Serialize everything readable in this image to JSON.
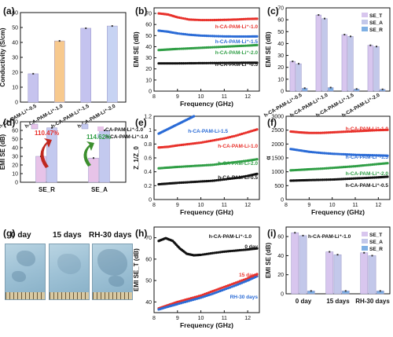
{
  "chart_data": [
    {
      "panel": "(a)",
      "type": "bar",
      "ylabel": "Conductivity (S/cm)",
      "ylim": [
        0,
        60
      ],
      "yticks": [
        0,
        10,
        20,
        30,
        40,
        50,
        60
      ],
      "categories": [
        "h-CA-PAM-Li⁺-0.5",
        "h-CA-PAM-Li⁺-1.0",
        "h-CA-PAM-Li⁺-1.5",
        "h-CA-PAM-Li⁺-2.0"
      ],
      "values": [
        19,
        41,
        49.5,
        51
      ],
      "colors": [
        "#c6c3ee",
        "#f7c98e",
        "#c4c3ef",
        "#c7d3f3"
      ]
    },
    {
      "panel": "(b)",
      "type": "line",
      "xlabel": "Frequency (GHz)",
      "ylabel": "EMI SE (dB)",
      "xlim": [
        8.2,
        12.4
      ],
      "xticks": [
        8,
        9,
        10,
        11,
        12
      ],
      "ylim": [
        0,
        75
      ],
      "yticks": [
        0,
        10,
        20,
        30,
        40,
        50,
        60,
        70
      ],
      "series": [
        {
          "name": "h-CA-PAM-Li⁺-1.0",
          "color": "#e8302a",
          "x": [
            8.2,
            8.6,
            9.0,
            9.5,
            10.0,
            10.5,
            11.0,
            11.5,
            12.0,
            12.4
          ],
          "y": [
            70,
            69,
            66.5,
            64.5,
            64,
            64,
            64.2,
            64.5,
            65,
            65.2
          ]
        },
        {
          "name": "h-CA-PAM-Li⁺-1.5",
          "color": "#2a6bd6",
          "x": [
            8.2,
            8.6,
            9.0,
            9.5,
            10.0,
            10.5,
            11.0,
            11.5,
            12.0,
            12.4
          ],
          "y": [
            54.5,
            53.5,
            52,
            50.8,
            50,
            49.6,
            49.3,
            49.2,
            49.2,
            49.3
          ]
        },
        {
          "name": "h-CA-PAM-Li⁺-2.0",
          "color": "#2f9e45",
          "x": [
            8.2,
            8.6,
            9.0,
            9.5,
            10.0,
            10.5,
            11.0,
            11.5,
            12.0,
            12.4
          ],
          "y": [
            37,
            37.5,
            38,
            38.5,
            39,
            39.5,
            40,
            40.5,
            41,
            41.5
          ]
        },
        {
          "name": "h-CA-PAM-Li⁺-0.5",
          "color": "#111111",
          "x": [
            8.2,
            8.6,
            9.0,
            9.5,
            10.0,
            10.5,
            11.0,
            11.5,
            12.0,
            12.4
          ],
          "y": [
            25,
            25,
            25,
            25.1,
            25.2,
            25.3,
            25.4,
            25.5,
            25.6,
            25.6
          ]
        }
      ]
    },
    {
      "panel": "(c)",
      "type": "bar",
      "ylabel": "EMI SE (dB)",
      "ylim": [
        0,
        70
      ],
      "yticks": [
        0,
        10,
        20,
        30,
        40,
        50,
        60,
        70
      ],
      "categories": [
        "h-CA-PAM-Li⁺-0.5",
        "h-CA-PAM-Li⁺-1.0",
        "h-CA-PAM-Li⁺-1.5",
        "h-CA-PAM-Li⁺-2.0"
      ],
      "legend": [
        "SE_T",
        "SE_A",
        "SE_R"
      ],
      "series": [
        {
          "name": "SE_T",
          "color": "#d8c6ee",
          "values": [
            25,
            64,
            47.5,
            38.5
          ]
        },
        {
          "name": "SE_A",
          "color": "#c3c8ea",
          "values": [
            23,
            61,
            46,
            37.5
          ]
        },
        {
          "name": "SE_R",
          "color": "#7fb0e4",
          "values": [
            2.5,
            3,
            1.8,
            1.5
          ]
        }
      ]
    },
    {
      "panel": "(d)",
      "type": "bar",
      "ylabel": "EMI SE (dB)",
      "ylim": [
        0,
        70
      ],
      "yticks": [
        0,
        10,
        20,
        30,
        40,
        50,
        60,
        70
      ],
      "categories": [
        "SE_R",
        "SE_A"
      ],
      "legend": [
        "CA-PAM-Li⁺-1.0",
        "h-CA-PAM-Li⁺-1.0"
      ],
      "series": [
        {
          "name": "CA-PAM-Li⁺-1.0",
          "color": "#e7c3e8",
          "values": [
            30,
            28
          ]
        },
        {
          "name": "h-CA-PAM-Li⁺-1.0",
          "color": "#c3c9ef",
          "values": [
            63,
            60
          ]
        }
      ],
      "annotations": [
        "110.47%",
        "114.62%"
      ]
    },
    {
      "panel": "(e)",
      "type": "line",
      "xlabel": "Frequency (GHz)",
      "ylabel": "Z_1/Z_0",
      "xlim": [
        8.2,
        12.4
      ],
      "xticks": [
        8,
        9,
        10,
        11,
        12
      ],
      "ylim": [
        0,
        1.2
      ],
      "yticks": [
        0.0,
        0.2,
        0.4,
        0.6,
        0.8,
        1.0,
        1.2
      ],
      "series": [
        {
          "name": "h-CA-PAM-Li-1.5",
          "color": "#2a6bd6",
          "x": [
            8.2,
            8.5,
            8.8,
            9.1,
            9.4,
            9.7
          ],
          "y": [
            0.95,
            1.0,
            1.05,
            1.1,
            1.15,
            1.2
          ]
        },
        {
          "name": "h-CA-PAM-Li-1.0",
          "color": "#e8302a",
          "x": [
            8.2,
            8.6,
            9.0,
            9.5,
            10.0,
            10.5,
            11.0,
            11.5,
            12.0,
            12.4
          ],
          "y": [
            0.75,
            0.76,
            0.78,
            0.8,
            0.82,
            0.85,
            0.88,
            0.92,
            0.97,
            1.01
          ]
        },
        {
          "name": "h-CA-PAM-Li-2.0",
          "color": "#2f9e45",
          "x": [
            8.2,
            8.6,
            9.0,
            9.5,
            10.0,
            10.5,
            11.0,
            11.5,
            12.0,
            12.4
          ],
          "y": [
            0.45,
            0.46,
            0.47,
            0.48,
            0.49,
            0.5,
            0.52,
            0.54,
            0.56,
            0.58
          ]
        },
        {
          "name": "h-CA-PAM-Li-0.5",
          "color": "#111111",
          "x": [
            8.2,
            8.6,
            9.0,
            9.5,
            10.0,
            10.5,
            11.0,
            11.5,
            12.0,
            12.4
          ],
          "y": [
            0.22,
            0.23,
            0.24,
            0.25,
            0.26,
            0.27,
            0.29,
            0.31,
            0.34,
            0.37
          ]
        }
      ]
    },
    {
      "panel": "(f)",
      "type": "line",
      "xlabel": "Frequency (GHz)",
      "ylabel": "α",
      "xlim": [
        8.2,
        12.4
      ],
      "xticks": [
        8,
        9,
        10,
        11,
        12
      ],
      "ylim": [
        0,
        3000
      ],
      "yticks": [
        0,
        500,
        1000,
        1500,
        2000,
        2500,
        3000
      ],
      "series": [
        {
          "name": "h-CA-PAM-Li⁺-1.0",
          "color": "#e8302a",
          "x": [
            8.2,
            8.6,
            9.0,
            9.5,
            10.0,
            10.5,
            11.0,
            11.5,
            12.0,
            12.4
          ],
          "y": [
            2450,
            2420,
            2400,
            2400,
            2420,
            2440,
            2460,
            2480,
            2500,
            2510
          ]
        },
        {
          "name": "h-CA-PAM-Li⁺-1.5",
          "color": "#2a6bd6",
          "x": [
            8.2,
            8.6,
            9.0,
            9.5,
            10.0,
            10.5,
            11.0,
            11.5,
            12.0,
            12.4
          ],
          "y": [
            1820,
            1770,
            1720,
            1680,
            1650,
            1630,
            1610,
            1600,
            1590,
            1580
          ]
        },
        {
          "name": "h-CA-PAM-Li⁺-2.0",
          "color": "#2f9e45",
          "x": [
            8.2,
            8.6,
            9.0,
            9.5,
            10.0,
            10.5,
            11.0,
            11.5,
            12.0,
            12.4
          ],
          "y": [
            1050,
            1070,
            1090,
            1110,
            1140,
            1170,
            1200,
            1240,
            1280,
            1310
          ]
        },
        {
          "name": "h-CA-PAM-Li⁺-0.5",
          "color": "#111111",
          "x": [
            8.2,
            8.6,
            9.0,
            9.5,
            10.0,
            10.5,
            11.0,
            11.5,
            12.0,
            12.4
          ],
          "y": [
            680,
            690,
            700,
            710,
            720,
            740,
            760,
            780,
            800,
            820
          ]
        }
      ]
    },
    {
      "panel": "(h)",
      "type": "line",
      "title": "h-CA-PAM-Li⁺-1.0",
      "xlabel": "Frequency (GHz)",
      "ylabel": "EMI SE_T (dB)",
      "xlim": [
        8.2,
        12.4
      ],
      "xticks": [
        8,
        9,
        10,
        11,
        12
      ],
      "ylim": [
        35,
        75
      ],
      "yticks": [
        40,
        50,
        60,
        70
      ],
      "series": [
        {
          "name": "0 day",
          "color": "#111111",
          "x": [
            8.2,
            8.5,
            8.8,
            9.1,
            9.4,
            9.7,
            10.0,
            10.5,
            11.0,
            11.5,
            12.0,
            12.4
          ],
          "y": [
            68.5,
            69.8,
            68.5,
            65,
            62.5,
            61.8,
            62,
            62.8,
            63.5,
            64,
            64.5,
            65
          ]
        },
        {
          "name": "15 days",
          "color": "#e8302a",
          "x": [
            8.2,
            8.6,
            9.0,
            9.5,
            10.0,
            10.5,
            11.0,
            11.5,
            12.0,
            12.4
          ],
          "y": [
            37,
            38.5,
            40,
            41.5,
            43,
            45,
            47,
            49,
            51,
            53
          ]
        },
        {
          "name": "RH-30 days",
          "color": "#2a6bd6",
          "x": [
            8.2,
            8.6,
            9.0,
            9.5,
            10.0,
            10.5,
            11.0,
            11.5,
            12.0,
            12.4
          ],
          "y": [
            36.5,
            37.8,
            39,
            40.5,
            42,
            43.8,
            45.8,
            47.8,
            50,
            52
          ]
        }
      ]
    },
    {
      "panel": "(i)",
      "type": "bar",
      "title": "h-CA-PAM-Li⁺-1.0",
      "ylabel": "EMI SE (dB)",
      "ylim": [
        0,
        70
      ],
      "yticks": [
        0,
        20,
        40,
        60
      ],
      "categories": [
        "0 day",
        "15 days",
        "RH-30 days"
      ],
      "legend": [
        "SE_T",
        "SE_A",
        "SE_R"
      ],
      "series": [
        {
          "name": "SE_T",
          "color": "#d8c6ee",
          "values": [
            64,
            44,
            43
          ]
        },
        {
          "name": "SE_A",
          "color": "#c3c8ea",
          "values": [
            61,
            41,
            40
          ]
        },
        {
          "name": "SE_R",
          "color": "#7fb0e4",
          "values": [
            3,
            3,
            3
          ]
        }
      ]
    }
  ],
  "photos": {
    "panel": "(g)",
    "labels": [
      "0 day",
      "15 days",
      "RH-30 days"
    ]
  }
}
